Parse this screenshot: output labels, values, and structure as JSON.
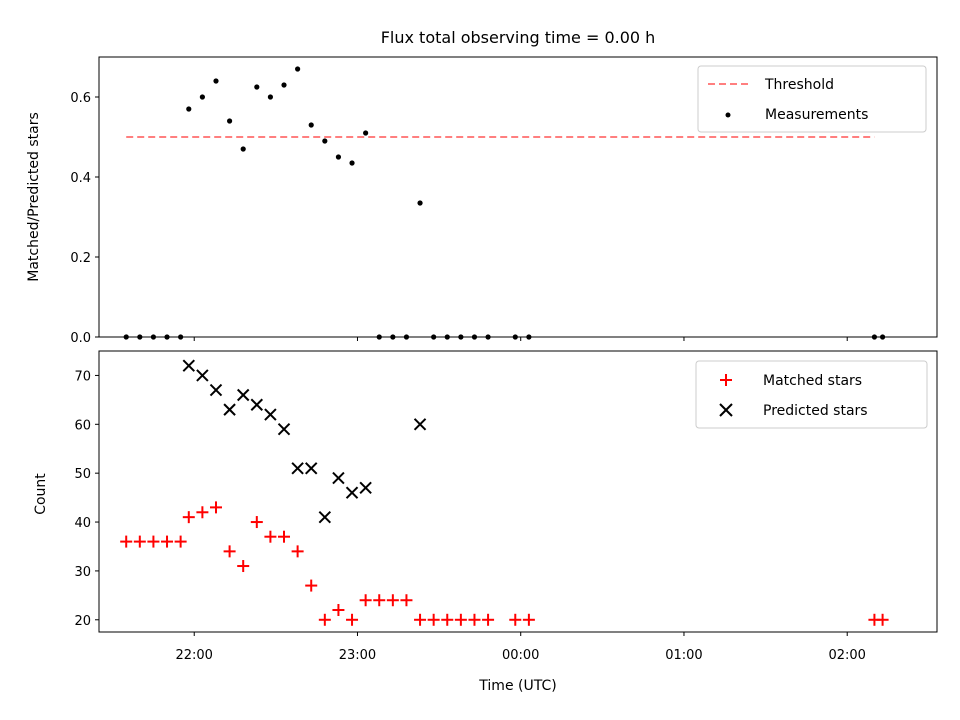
{
  "chart_data": [
    {
      "type": "scatter",
      "title": "Flux total observing time = 0.00 h",
      "xlabel": "",
      "ylabel": "Matched/Predicted stars",
      "ylim": [
        0,
        0.7
      ],
      "yticks": [
        "0.0",
        "0.2",
        "0.4",
        "0.6"
      ],
      "legend_position": "top-right",
      "threshold": {
        "name": "Threshold",
        "value": 0.5,
        "x_start": "21:35",
        "x_end": "02:10",
        "color": "#ff7f7f"
      },
      "series": [
        {
          "name": "Measurements",
          "color": "#000000",
          "marker": "dot",
          "points": [
            {
              "x": "21:35",
              "y": 0.0
            },
            {
              "x": "21:40",
              "y": 0.0
            },
            {
              "x": "21:45",
              "y": 0.0
            },
            {
              "x": "21:50",
              "y": 0.0
            },
            {
              "x": "21:55",
              "y": 0.0
            },
            {
              "x": "21:58",
              "y": 0.57
            },
            {
              "x": "22:03",
              "y": 0.6
            },
            {
              "x": "22:08",
              "y": 0.64
            },
            {
              "x": "22:13",
              "y": 0.54
            },
            {
              "x": "22:18",
              "y": 0.47
            },
            {
              "x": "22:23",
              "y": 0.625
            },
            {
              "x": "22:28",
              "y": 0.6
            },
            {
              "x": "22:33",
              "y": 0.63
            },
            {
              "x": "22:38",
              "y": 0.67
            },
            {
              "x": "22:43",
              "y": 0.53
            },
            {
              "x": "22:48",
              "y": 0.49
            },
            {
              "x": "22:53",
              "y": 0.45
            },
            {
              "x": "22:58",
              "y": 0.435
            },
            {
              "x": "23:03",
              "y": 0.51
            },
            {
              "x": "23:08",
              "y": 0.0
            },
            {
              "x": "23:13",
              "y": 0.0
            },
            {
              "x": "23:18",
              "y": 0.0
            },
            {
              "x": "23:23",
              "y": 0.335
            },
            {
              "x": "23:28",
              "y": 0.0
            },
            {
              "x": "23:33",
              "y": 0.0
            },
            {
              "x": "23:38",
              "y": 0.0
            },
            {
              "x": "23:43",
              "y": 0.0
            },
            {
              "x": "23:48",
              "y": 0.0
            },
            {
              "x": "23:58",
              "y": 0.0
            },
            {
              "x": "00:03",
              "y": 0.0
            },
            {
              "x": "02:10",
              "y": 0.0
            },
            {
              "x": "02:13",
              "y": 0.0
            }
          ]
        }
      ]
    },
    {
      "type": "scatter",
      "title": "",
      "xlabel": "Time (UTC)",
      "ylabel": "Count",
      "ylim": [
        17.5,
        75
      ],
      "yticks": [
        "20",
        "30",
        "40",
        "50",
        "60",
        "70"
      ],
      "xlim": [
        "21:25",
        "02:33"
      ],
      "xticks": [
        "22:00",
        "23:00",
        "00:00",
        "01:00",
        "02:00"
      ],
      "legend_position": "top-right",
      "series": [
        {
          "name": "Matched stars",
          "color": "#ff0000",
          "marker": "plus",
          "points": [
            {
              "x": "21:35",
              "y": 36
            },
            {
              "x": "21:40",
              "y": 36
            },
            {
              "x": "21:45",
              "y": 36
            },
            {
              "x": "21:50",
              "y": 36
            },
            {
              "x": "21:55",
              "y": 36
            },
            {
              "x": "21:58",
              "y": 41
            },
            {
              "x": "22:03",
              "y": 42
            },
            {
              "x": "22:08",
              "y": 43
            },
            {
              "x": "22:13",
              "y": 34
            },
            {
              "x": "22:18",
              "y": 31
            },
            {
              "x": "22:23",
              "y": 40
            },
            {
              "x": "22:28",
              "y": 37
            },
            {
              "x": "22:33",
              "y": 37
            },
            {
              "x": "22:38",
              "y": 34
            },
            {
              "x": "22:43",
              "y": 27
            },
            {
              "x": "22:48",
              "y": 20
            },
            {
              "x": "22:53",
              "y": 22
            },
            {
              "x": "22:58",
              "y": 20
            },
            {
              "x": "23:03",
              "y": 24
            },
            {
              "x": "23:08",
              "y": 24
            },
            {
              "x": "23:13",
              "y": 24
            },
            {
              "x": "23:18",
              "y": 24
            },
            {
              "x": "23:23",
              "y": 20
            },
            {
              "x": "23:28",
              "y": 20
            },
            {
              "x": "23:33",
              "y": 20
            },
            {
              "x": "23:38",
              "y": 20
            },
            {
              "x": "23:43",
              "y": 20
            },
            {
              "x": "23:48",
              "y": 20
            },
            {
              "x": "23:58",
              "y": 20
            },
            {
              "x": "00:03",
              "y": 20
            },
            {
              "x": "02:10",
              "y": 20
            },
            {
              "x": "02:13",
              "y": 20
            }
          ]
        },
        {
          "name": "Predicted stars",
          "color": "#000000",
          "marker": "x",
          "points": [
            {
              "x": "21:58",
              "y": 72
            },
            {
              "x": "22:03",
              "y": 70
            },
            {
              "x": "22:08",
              "y": 67
            },
            {
              "x": "22:13",
              "y": 63
            },
            {
              "x": "22:18",
              "y": 66
            },
            {
              "x": "22:23",
              "y": 64
            },
            {
              "x": "22:28",
              "y": 62
            },
            {
              "x": "22:33",
              "y": 59
            },
            {
              "x": "22:38",
              "y": 51
            },
            {
              "x": "22:43",
              "y": 51
            },
            {
              "x": "22:48",
              "y": 41
            },
            {
              "x": "22:53",
              "y": 49
            },
            {
              "x": "22:58",
              "y": 46
            },
            {
              "x": "23:03",
              "y": 47
            },
            {
              "x": "23:23",
              "y": 60
            }
          ]
        }
      ]
    }
  ]
}
